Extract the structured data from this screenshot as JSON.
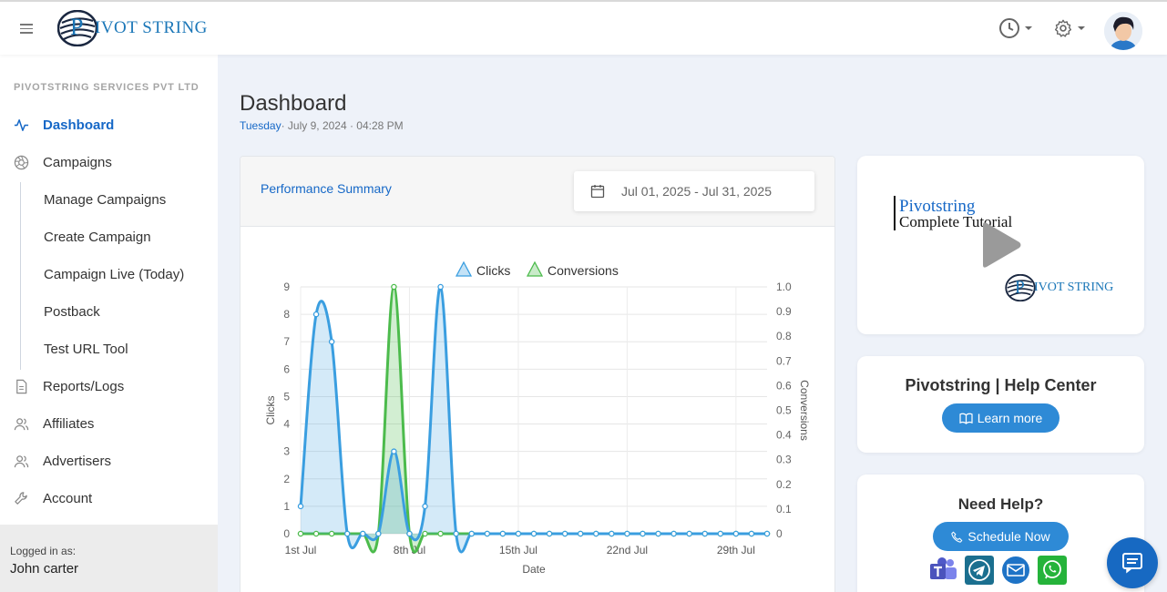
{
  "header": {
    "logo_text": "IVOT STRING",
    "logo_letter": "P",
    "icons": [
      "menu-icon",
      "history-icon",
      "settings-icon"
    ],
    "accent_color": "#1668c7"
  },
  "sidebar": {
    "company": "PIVOTSTRING SERVICES PVT LTD",
    "items": [
      {
        "label": "Dashboard",
        "icon": "activity-icon",
        "active": true
      },
      {
        "label": "Campaigns",
        "icon": "aperture-icon"
      },
      {
        "label": "Reports/Logs",
        "icon": "file-icon"
      },
      {
        "label": "Affiliates",
        "icon": "users-icon"
      },
      {
        "label": "Advertisers",
        "icon": "users-icon"
      },
      {
        "label": "Account",
        "icon": "wrench-icon"
      }
    ],
    "sub_items": [
      "Manage Campaigns",
      "Create Campaign",
      "Campaign Live (Today)",
      "Postback",
      "Test URL Tool"
    ],
    "login_label": "Logged in as:",
    "user": "John carter"
  },
  "main": {
    "title": "Dashboard",
    "day": "Tuesday",
    "date_rest": "· July 9, 2024 · 04:28 PM"
  },
  "performance": {
    "title": "Performance Summary",
    "date_range": "Jul 01, 2025 - Jul 31, 2025"
  },
  "chart_data": {
    "type": "area",
    "xlabel": "Date",
    "ylabel": "Clicks",
    "y2label": "Conversions",
    "x_ticks": [
      "1st Jul",
      "8th Jul",
      "15th Jul",
      "22nd Jul",
      "29th Jul"
    ],
    "ylim": [
      0,
      9
    ],
    "y2lim": [
      0,
      1.0
    ],
    "y_ticks": [
      "0",
      "1",
      "2",
      "3",
      "4",
      "5",
      "6",
      "7",
      "8",
      "9"
    ],
    "y2_ticks": [
      "0",
      "0.1",
      "0.2",
      "0.3",
      "0.4",
      "0.5",
      "0.6",
      "0.7",
      "0.8",
      "0.9",
      "1.0"
    ],
    "grid": true,
    "legend": "top-center",
    "colors": {
      "clicks": "#3a9ee0",
      "conversions": "#4cbb4c"
    },
    "series": [
      {
        "name": "Clicks",
        "axis": "left",
        "values": [
          1,
          8,
          7,
          0,
          0,
          0,
          3,
          0,
          1,
          9,
          0,
          0,
          0,
          0,
          0,
          0,
          0,
          0,
          0,
          0,
          0,
          0,
          0,
          0,
          0,
          0,
          0,
          0,
          0,
          0,
          0
        ]
      },
      {
        "name": "Conversions",
        "axis": "right",
        "values": [
          0,
          0,
          0,
          0,
          0,
          0,
          1,
          0,
          0,
          0,
          0,
          0,
          0,
          0,
          0,
          0,
          0,
          0,
          0,
          0,
          0,
          0,
          0,
          0,
          0,
          0,
          0,
          0,
          0,
          0,
          0
        ]
      }
    ]
  },
  "tutorial": {
    "line1": "Pivotstring",
    "line2": "Complete Tutorial",
    "logo_text": "IVOT STRING"
  },
  "help_center": {
    "title": "Pivotstring | Help Center",
    "button": "Learn more"
  },
  "need_help": {
    "title": "Need Help?",
    "button": "Schedule Now",
    "apps": [
      "teams-icon",
      "telegram-icon",
      "email-icon",
      "whatsapp-icon"
    ]
  }
}
